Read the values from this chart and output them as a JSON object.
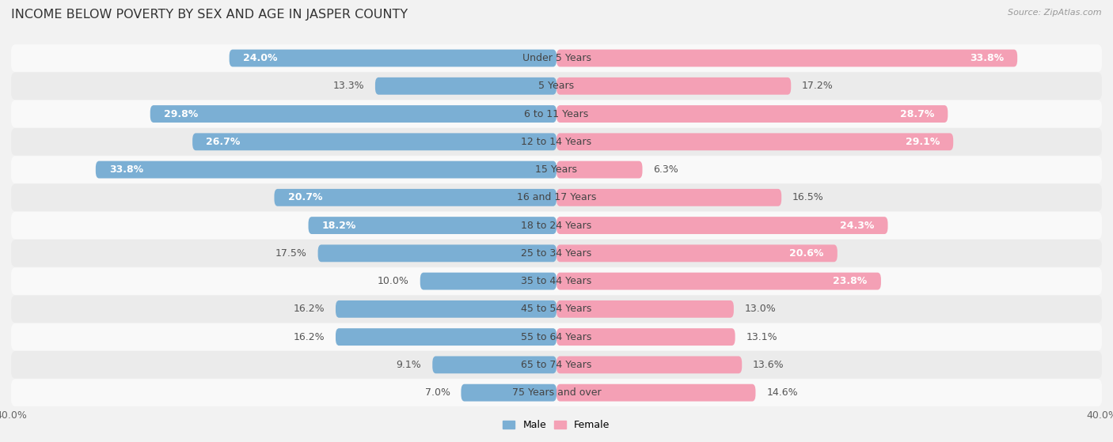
{
  "title": "INCOME BELOW POVERTY BY SEX AND AGE IN JASPER COUNTY",
  "source": "Source: ZipAtlas.com",
  "categories": [
    "Under 5 Years",
    "5 Years",
    "6 to 11 Years",
    "12 to 14 Years",
    "15 Years",
    "16 and 17 Years",
    "18 to 24 Years",
    "25 to 34 Years",
    "35 to 44 Years",
    "45 to 54 Years",
    "55 to 64 Years",
    "65 to 74 Years",
    "75 Years and over"
  ],
  "male": [
    24.0,
    13.3,
    29.8,
    26.7,
    33.8,
    20.7,
    18.2,
    17.5,
    10.0,
    16.2,
    16.2,
    9.1,
    7.0
  ],
  "female": [
    33.8,
    17.2,
    28.7,
    29.1,
    6.3,
    16.5,
    24.3,
    20.6,
    23.8,
    13.0,
    13.1,
    13.6,
    14.6
  ],
  "male_color": "#7bafd4",
  "female_color": "#f4a0b5",
  "male_label": "Male",
  "female_label": "Female",
  "xlim": 40.0,
  "bar_height": 0.62,
  "background_color": "#f2f2f2",
  "row_bg_even": "#f9f9f9",
  "row_bg_odd": "#ebebeb",
  "title_fontsize": 11.5,
  "value_fontsize": 9,
  "cat_fontsize": 9,
  "source_fontsize": 8,
  "axis_label_fontsize": 9,
  "inside_label_color": "white",
  "outside_label_color": "#555555",
  "inside_threshold": 18
}
